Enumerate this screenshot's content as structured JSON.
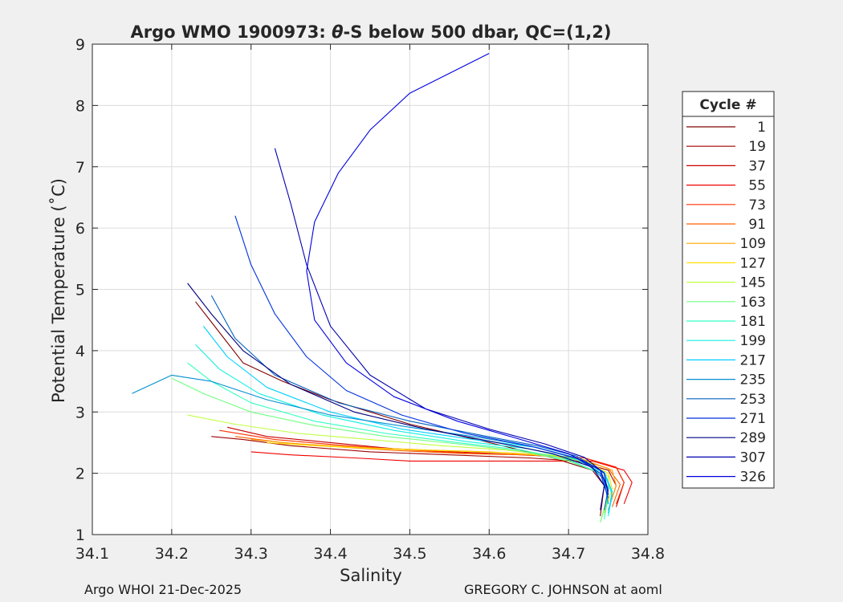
{
  "chart_data": {
    "type": "line",
    "title_prefix": "Argo WMO 1900973: ",
    "title_symbol": "θ",
    "title_suffix": "-S below 500 dbar,  QC=(1,2)",
    "xlabel": "Salinity",
    "ylabel": "Potential Temperature (˚C)",
    "xlim": [
      34.1,
      34.8
    ],
    "ylim": [
      1,
      9
    ],
    "xticks": [
      "34.1",
      "34.2",
      "34.3",
      "34.4",
      "34.5",
      "34.6",
      "34.7",
      "34.8"
    ],
    "yticks": [
      "1",
      "2",
      "3",
      "4",
      "5",
      "6",
      "7",
      "8",
      "9"
    ],
    "grid": true,
    "legend": {
      "title": "Cycle #",
      "position": "right-outside",
      "entries": [
        {
          "label": "1",
          "color": "#800000"
        },
        {
          "label": "19",
          "color": "#a00000"
        },
        {
          "label": "37",
          "color": "#c80000"
        },
        {
          "label": "55",
          "color": "#f00000"
        },
        {
          "label": "73",
          "color": "#ff3000"
        },
        {
          "label": "91",
          "color": "#ff6000"
        },
        {
          "label": "109",
          "color": "#ffa000"
        },
        {
          "label": "127",
          "color": "#ffe000"
        },
        {
          "label": "145",
          "color": "#c0ff40"
        },
        {
          "label": "163",
          "color": "#70ff80"
        },
        {
          "label": "181",
          "color": "#30ffc0"
        },
        {
          "label": "199",
          "color": "#10f0e0"
        },
        {
          "label": "217",
          "color": "#00d0ff"
        },
        {
          "label": "235",
          "color": "#0090d0"
        },
        {
          "label": "253",
          "color": "#0060c0"
        },
        {
          "label": "271",
          "color": "#0030e0"
        },
        {
          "label": "289",
          "color": "#000080"
        },
        {
          "label": "307",
          "color": "#0000b0"
        },
        {
          "label": "326",
          "color": "#0000e0"
        }
      ]
    },
    "series": [
      {
        "name": "1",
        "color": "#800000",
        "s": [
          34.23,
          34.26,
          34.29,
          34.34,
          34.4,
          34.5,
          34.6,
          34.68,
          34.73,
          34.745,
          34.74
        ],
        "t": [
          4.8,
          4.3,
          3.8,
          3.5,
          3.2,
          2.8,
          2.5,
          2.25,
          2.05,
          1.8,
          1.3
        ]
      },
      {
        "name": "19",
        "color": "#a00000",
        "s": [
          34.25,
          34.29,
          34.35,
          34.45,
          34.55,
          34.65,
          34.71,
          34.75,
          34.76,
          34.75
        ],
        "t": [
          2.6,
          2.55,
          2.45,
          2.35,
          2.3,
          2.25,
          2.2,
          2.05,
          1.8,
          1.4
        ]
      },
      {
        "name": "37",
        "color": "#c80000",
        "s": [
          34.27,
          34.32,
          34.4,
          34.48,
          34.56,
          34.64,
          34.72,
          34.76,
          34.77,
          34.76
        ],
        "t": [
          2.75,
          2.6,
          2.5,
          2.4,
          2.35,
          2.3,
          2.25,
          2.1,
          1.85,
          1.45
        ]
      },
      {
        "name": "55",
        "color": "#f00000",
        "s": [
          34.3,
          34.35,
          34.43,
          34.5,
          34.58,
          34.66,
          34.73,
          34.77,
          34.78,
          34.77
        ],
        "t": [
          2.35,
          2.3,
          2.25,
          2.2,
          2.2,
          2.2,
          2.2,
          2.05,
          1.85,
          1.5
        ]
      },
      {
        "name": "73",
        "color": "#ff3000",
        "s": [
          34.26,
          34.33,
          34.42,
          34.5,
          34.58,
          34.66,
          34.72,
          34.76,
          34.77,
          34.76
        ],
        "t": [
          2.7,
          2.55,
          2.45,
          2.38,
          2.32,
          2.3,
          2.25,
          2.1,
          1.85,
          1.5
        ]
      },
      {
        "name": "91",
        "color": "#ff6000",
        "s": [
          34.28,
          34.34,
          34.42,
          34.5,
          34.57,
          34.65,
          34.71,
          34.75,
          34.765,
          34.755
        ],
        "t": [
          2.6,
          2.5,
          2.42,
          2.36,
          2.32,
          2.3,
          2.24,
          2.08,
          1.82,
          1.45
        ]
      },
      {
        "name": "109",
        "color": "#ffa000",
        "s": [
          34.3,
          34.36,
          34.44,
          34.52,
          34.6,
          34.67,
          34.72,
          34.755,
          34.76,
          34.75
        ],
        "t": [
          2.55,
          2.48,
          2.42,
          2.38,
          2.35,
          2.3,
          2.22,
          2.05,
          1.8,
          1.4
        ]
      },
      {
        "name": "127",
        "color": "#ffe000",
        "s": [
          34.32,
          34.38,
          34.46,
          34.54,
          34.61,
          34.68,
          34.725,
          34.75,
          34.755,
          34.745
        ],
        "t": [
          2.5,
          2.45,
          2.4,
          2.37,
          2.34,
          2.28,
          2.18,
          2.0,
          1.75,
          1.35
        ]
      },
      {
        "name": "145",
        "color": "#c0ff40",
        "s": [
          34.22,
          34.28,
          34.36,
          34.45,
          34.54,
          34.62,
          34.69,
          34.73,
          34.75,
          34.75,
          34.74
        ],
        "t": [
          2.95,
          2.8,
          2.65,
          2.55,
          2.45,
          2.38,
          2.28,
          2.15,
          1.95,
          1.6,
          1.2
        ]
      },
      {
        "name": "163",
        "color": "#70ff80",
        "s": [
          34.2,
          34.24,
          34.3,
          34.38,
          34.47,
          34.56,
          34.64,
          34.7,
          34.74,
          34.75,
          34.74
        ],
        "t": [
          3.55,
          3.3,
          3.0,
          2.78,
          2.6,
          2.48,
          2.36,
          2.2,
          2.0,
          1.65,
          1.2
        ]
      },
      {
        "name": "181",
        "color": "#30ffc0",
        "s": [
          34.22,
          34.25,
          34.3,
          34.38,
          34.47,
          34.56,
          34.64,
          34.7,
          34.74,
          34.75,
          34.745
        ],
        "t": [
          3.8,
          3.5,
          3.15,
          2.85,
          2.65,
          2.5,
          2.38,
          2.22,
          2.0,
          1.65,
          1.25
        ]
      },
      {
        "name": "199",
        "color": "#10f0e0",
        "s": [
          34.23,
          34.26,
          34.31,
          34.39,
          34.48,
          34.57,
          34.65,
          34.71,
          34.745,
          34.755,
          34.75
        ],
        "t": [
          4.1,
          3.7,
          3.3,
          2.95,
          2.7,
          2.52,
          2.4,
          2.22,
          2.0,
          1.65,
          1.3
        ]
      },
      {
        "name": "217",
        "color": "#00d0ff",
        "s": [
          34.24,
          34.27,
          34.32,
          34.4,
          34.49,
          34.58,
          34.66,
          34.71,
          34.745,
          34.755,
          34.75
        ],
        "t": [
          4.4,
          3.9,
          3.4,
          3.0,
          2.72,
          2.55,
          2.42,
          2.25,
          2.02,
          1.7,
          1.35
        ]
      },
      {
        "name": "235",
        "color": "#0090d0",
        "s": [
          34.15,
          34.2,
          34.25,
          34.32,
          34.4,
          34.5,
          34.59,
          34.66,
          34.72,
          34.745,
          34.75
        ],
        "t": [
          3.3,
          3.6,
          3.5,
          3.2,
          2.95,
          2.75,
          2.58,
          2.42,
          2.2,
          1.9,
          1.5
        ]
      },
      {
        "name": "253",
        "color": "#0060c0",
        "s": [
          34.25,
          34.28,
          34.33,
          34.41,
          34.5,
          34.59,
          34.66,
          34.71,
          34.74,
          34.75,
          34.745
        ],
        "t": [
          4.9,
          4.2,
          3.6,
          3.15,
          2.85,
          2.62,
          2.45,
          2.28,
          2.05,
          1.75,
          1.4
        ]
      },
      {
        "name": "271",
        "color": "#0030e0",
        "s": [
          34.28,
          34.3,
          34.33,
          34.37,
          34.42,
          34.49,
          34.57,
          34.65,
          34.71,
          34.74,
          34.75
        ],
        "t": [
          6.2,
          5.4,
          4.6,
          3.9,
          3.35,
          2.95,
          2.65,
          2.45,
          2.25,
          2.0,
          1.6
        ]
      },
      {
        "name": "289",
        "color": "#000080",
        "s": [
          34.22,
          34.25,
          34.29,
          34.35,
          34.43,
          34.52,
          34.61,
          34.68,
          34.73,
          34.745,
          34.74
        ],
        "t": [
          5.1,
          4.6,
          4.0,
          3.45,
          3.0,
          2.72,
          2.5,
          2.32,
          2.1,
          1.8,
          1.4
        ]
      },
      {
        "name": "307",
        "color": "#0000b0",
        "s": [
          34.33,
          34.35,
          34.37,
          34.4,
          34.45,
          34.52,
          34.6,
          34.67,
          34.72,
          34.745,
          34.75
        ],
        "t": [
          7.3,
          6.4,
          5.4,
          4.4,
          3.6,
          3.05,
          2.72,
          2.48,
          2.26,
          2.0,
          1.65
        ]
      },
      {
        "name": "326",
        "color": "#0000e0",
        "s": [
          34.6,
          34.5,
          34.45,
          34.41,
          34.38,
          34.37,
          34.38,
          34.42,
          34.48,
          34.56,
          34.64,
          34.7,
          34.74,
          34.75
        ],
        "t": [
          8.85,
          8.2,
          7.6,
          6.9,
          6.1,
          5.3,
          4.5,
          3.8,
          3.25,
          2.85,
          2.55,
          2.32,
          2.05,
          1.7
        ]
      }
    ]
  },
  "footer": {
    "left": "Argo WHOI 21-Dec-2025",
    "right": "GREGORY C. JOHNSON at aoml"
  }
}
